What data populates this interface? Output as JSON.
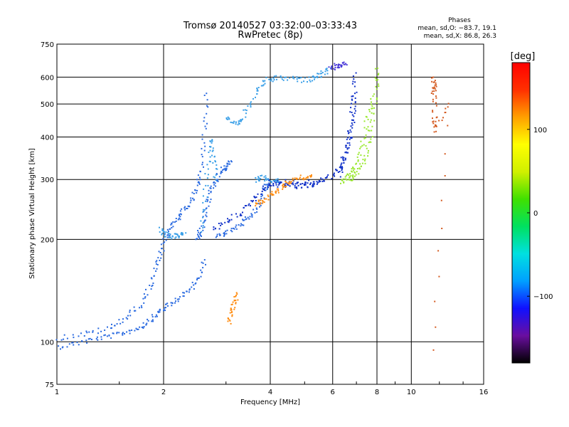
{
  "chart_data": {
    "type": "scatter",
    "title": "Tromsø 20140527 03:32:00–03:33:43",
    "subtitle": "RwPretec (8p)",
    "xlabel": "Frequency [MHz]",
    "ylabel": "Stationary phase Virtual Height [km]",
    "x_scale": "log",
    "y_scale": "log",
    "xlim": [
      1,
      16
    ],
    "ylim": [
      75,
      750
    ],
    "x_ticks": [
      1,
      2,
      4,
      6,
      8,
      10,
      16
    ],
    "x_tick_labels": [
      "1",
      "2",
      "4",
      "6",
      "8",
      "10",
      "16"
    ],
    "y_ticks": [
      75,
      100,
      200,
      300,
      400,
      500,
      600,
      750
    ],
    "y_tick_labels": [
      "75",
      "100",
      "200",
      "300",
      "400",
      "500",
      "600",
      "750"
    ],
    "grid": true,
    "phase_stats": {
      "title": "Phases",
      "line_o": "mean, sd,O: −83.7, 19.1",
      "line_x": "mean, sd,X: 86.8, 26.3"
    },
    "colorbar": {
      "label": "[deg]",
      "range": [
        -180,
        180
      ],
      "ticks": [
        100,
        0,
        -100
      ],
      "tick_labels": [
        "100",
        "0",
        "−100"
      ],
      "colors": [
        "#000000",
        "#6a0ea0",
        "#1010ff",
        "#00a0ff",
        "#00e0e0",
        "#00e060",
        "#40e000",
        "#d0f000",
        "#ffff00",
        "#ffa000",
        "#ff3000",
        "#ff0000"
      ]
    },
    "series": [
      {
        "color": "#2a6ae0",
        "polylines": [
          [
            [
              1.0,
              97
            ],
            [
              1.15,
              100
            ],
            [
              1.3,
              103
            ],
            [
              1.45,
              105
            ],
            [
              1.6,
              108
            ],
            [
              1.75,
              112
            ],
            [
              1.85,
              118
            ],
            [
              1.95,
              124
            ],
            [
              2.05,
              128
            ],
            [
              2.2,
              135
            ],
            [
              2.35,
              142
            ],
            [
              2.5,
              155
            ],
            [
              2.6,
              175
            ]
          ],
          [
            [
              1.0,
              103
            ],
            [
              1.2,
              106
            ],
            [
              1.4,
              110
            ],
            [
              1.55,
              118
            ],
            [
              1.7,
              128
            ],
            [
              1.82,
              145
            ],
            [
              1.9,
              165
            ],
            [
              1.97,
              185
            ],
            [
              2.03,
              205
            ],
            [
              2.1,
              222
            ],
            [
              2.2,
              235
            ],
            [
              2.3,
              248
            ],
            [
              2.4,
              265
            ],
            [
              2.5,
              290
            ],
            [
              2.55,
              330
            ],
            [
              2.6,
              420
            ],
            [
              2.63,
              540
            ]
          ],
          [
            [
              2.48,
              200
            ],
            [
              2.52,
              210
            ],
            [
              2.58,
              230
            ],
            [
              2.65,
              260
            ],
            [
              2.72,
              285
            ],
            [
              2.8,
              300
            ],
            [
              2.9,
              320
            ],
            [
              3.0,
              330
            ],
            [
              3.1,
              340
            ]
          ],
          [
            [
              2.8,
              205
            ],
            [
              3.0,
              210
            ],
            [
              3.2,
              218
            ],
            [
              3.4,
              228
            ],
            [
              3.6,
              240
            ],
            [
              3.75,
              260
            ],
            [
              3.85,
              285
            ],
            [
              3.95,
              300
            ]
          ]
        ]
      },
      {
        "color": "#1030c8",
        "polylines": [
          [
            [
              2.75,
              215
            ],
            [
              3.0,
              225
            ],
            [
              3.25,
              240
            ],
            [
              3.5,
              258
            ],
            [
              3.75,
              278
            ],
            [
              4.0,
              292
            ],
            [
              4.4,
              298
            ],
            [
              4.8,
              292
            ],
            [
              5.2,
              295
            ],
            [
              5.6,
              300
            ],
            [
              6.0,
              310
            ],
            [
              6.3,
              330
            ],
            [
              6.5,
              370
            ],
            [
              6.7,
              430
            ],
            [
              6.85,
              520
            ],
            [
              6.95,
              620
            ]
          ],
          [
            [
              6.2,
              310
            ],
            [
              6.45,
              340
            ],
            [
              6.65,
              390
            ],
            [
              6.8,
              450
            ],
            [
              6.9,
              540
            ]
          ],
          [
            [
              4.0,
              295
            ],
            [
              4.3,
              290
            ],
            [
              4.6,
              288
            ],
            [
              5.0,
              290
            ],
            [
              5.4,
              292
            ]
          ]
        ]
      },
      {
        "color": "#3aa0e8",
        "polylines": [
          [
            [
              2.55,
              210
            ],
            [
              2.6,
              260
            ],
            [
              2.65,
              330
            ],
            [
              2.7,
              400
            ],
            [
              2.75,
              350
            ],
            [
              2.8,
              300
            ]
          ],
          [
            [
              3.0,
              460
            ],
            [
              3.15,
              440
            ],
            [
              3.3,
              450
            ],
            [
              3.5,
              500
            ],
            [
              3.7,
              560
            ],
            [
              3.9,
              590
            ],
            [
              4.2,
              600
            ],
            [
              4.6,
              595
            ],
            [
              5.0,
              590
            ],
            [
              5.4,
              605
            ]
          ],
          [
            [
              5.3,
              600
            ],
            [
              5.6,
              620
            ],
            [
              5.9,
              640
            ]
          ],
          [
            [
              3.6,
              300
            ],
            [
              3.8,
              305
            ],
            [
              4.0,
              300
            ],
            [
              4.2,
              298
            ]
          ],
          [
            [
              1.95,
              215
            ],
            [
              2.0,
              208
            ],
            [
              2.1,
              205
            ],
            [
              2.2,
              206
            ],
            [
              2.3,
              210
            ]
          ]
        ]
      },
      {
        "color": "#4a3ad8",
        "polylines": [
          [
            [
              5.9,
              640
            ],
            [
              6.1,
              650
            ],
            [
              6.3,
              655
            ],
            [
              6.5,
              660
            ]
          ]
        ]
      },
      {
        "color": "#ff8c10",
        "polylines": [
          [
            [
              3.6,
              255
            ],
            [
              3.8,
              262
            ],
            [
              4.0,
              270
            ],
            [
              4.2,
              280
            ],
            [
              4.4,
              292
            ],
            [
              4.6,
              300
            ],
            [
              4.9,
              306
            ],
            [
              5.2,
              308
            ]
          ],
          [
            [
              3.05,
              115
            ],
            [
              3.1,
              122
            ],
            [
              3.15,
              130
            ],
            [
              3.2,
              140
            ]
          ]
        ]
      },
      {
        "color": "#9ae830",
        "polylines": [
          [
            [
              6.5,
              300
            ],
            [
              6.8,
              305
            ],
            [
              7.1,
              320
            ],
            [
              7.4,
              350
            ],
            [
              7.6,
              400
            ],
            [
              7.8,
              470
            ],
            [
              7.95,
              560
            ],
            [
              8.0,
              640
            ]
          ],
          [
            [
              6.3,
              298
            ],
            [
              6.6,
              310
            ],
            [
              6.9,
              330
            ],
            [
              7.2,
              370
            ],
            [
              7.45,
              440
            ],
            [
              7.65,
              520
            ]
          ]
        ]
      },
      {
        "color": "#d45a20",
        "polylines": [
          [
            [
              11.5,
              600
            ],
            [
              11.55,
              570
            ],
            [
              11.5,
              540
            ],
            [
              11.6,
              460
            ],
            [
              11.55,
              420
            ],
            [
              12.8,
              510
            ],
            [
              11.5,
              95
            ]
          ]
        ]
      }
    ]
  }
}
